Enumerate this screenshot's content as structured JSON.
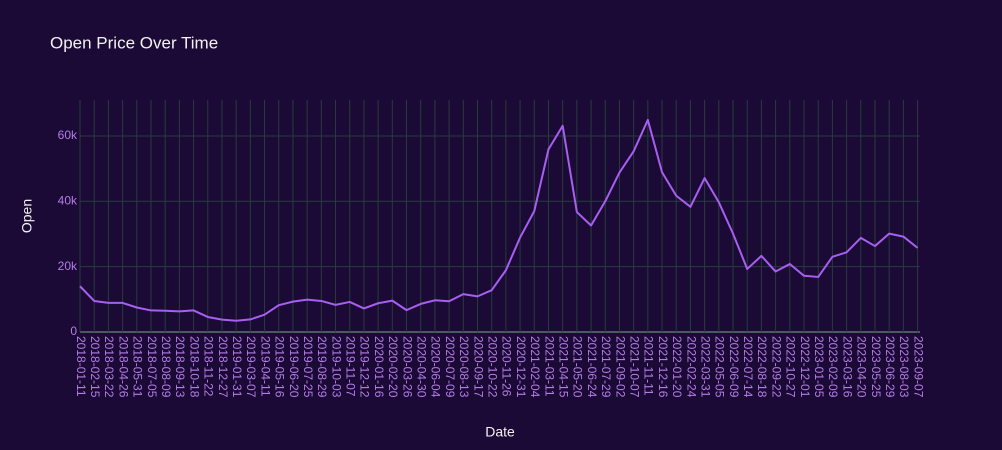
{
  "chart_data": {
    "type": "line",
    "title": "Open Price Over Time",
    "x_label": "Date",
    "y_label": "Open",
    "x": [
      "2018-01-11",
      "2018-02-15",
      "2018-03-22",
      "2018-04-26",
      "2018-05-31",
      "2018-07-05",
      "2018-08-09",
      "2018-09-13",
      "2018-10-18",
      "2018-11-22",
      "2018-12-27",
      "2019-01-31",
      "2019-03-07",
      "2019-04-11",
      "2019-05-16",
      "2019-06-20",
      "2019-07-25",
      "2019-08-29",
      "2019-10-03",
      "2019-11-07",
      "2019-12-12",
      "2020-01-16",
      "2020-02-20",
      "2020-03-26",
      "2020-04-30",
      "2020-06-04",
      "2020-07-09",
      "2020-08-13",
      "2020-09-17",
      "2020-10-22",
      "2020-11-26",
      "2020-12-31",
      "2021-02-04",
      "2021-03-11",
      "2021-04-15",
      "2021-05-20",
      "2021-06-24",
      "2021-07-29",
      "2021-09-02",
      "2021-10-07",
      "2021-11-11",
      "2021-12-16",
      "2022-01-20",
      "2022-02-24",
      "2022-03-31",
      "2022-05-05",
      "2022-06-09",
      "2022-07-14",
      "2022-08-18",
      "2022-09-22",
      "2022-10-27",
      "2022-12-01",
      "2023-01-05",
      "2023-02-09",
      "2023-03-16",
      "2023-04-20",
      "2023-05-25",
      "2023-06-29",
      "2023-08-03",
      "2023-09-07"
    ],
    "series": [
      {
        "name": "Open",
        "color": "#a75ff0",
        "values": [
          14000,
          9500,
          8900,
          8900,
          7500,
          6600,
          6500,
          6300,
          6600,
          4600,
          3800,
          3450,
          3850,
          5300,
          8200,
          9300,
          9900,
          9500,
          8300,
          9200,
          7200,
          8800,
          9600,
          6700,
          8600,
          9700,
          9400,
          11600,
          10900,
          12800,
          18900,
          28900,
          37000,
          55900,
          63100,
          36700,
          32600,
          40000,
          48800,
          55300,
          64900,
          48900,
          41700,
          38300,
          47100,
          39700,
          30100,
          19300,
          23300,
          18500,
          20800,
          17200,
          16850,
          23000,
          24400,
          28800,
          26300,
          30100,
          29200,
          25750
        ]
      }
    ],
    "xlim": [
      "2018-01-11",
      "2023-09-13"
    ],
    "xticks": [
      "2018-01-11",
      "2018-02-15",
      "2018-03-22",
      "2018-04-26",
      "2018-05-31",
      "2018-07-05",
      "2018-08-09",
      "2018-09-13",
      "2018-10-18",
      "2018-11-22",
      "2018-12-27",
      "2019-01-31",
      "2019-03-07",
      "2019-04-11",
      "2019-05-16",
      "2019-06-20",
      "2019-07-25",
      "2019-08-29",
      "2019-10-03",
      "2019-11-07",
      "2019-12-12",
      "2020-01-16",
      "2020-02-20",
      "2020-03-26",
      "2020-04-30",
      "2020-06-04",
      "2020-07-09",
      "2020-08-13",
      "2020-09-17",
      "2020-10-22",
      "2020-11-26",
      "2020-12-31",
      "2021-02-04",
      "2021-03-11",
      "2021-04-15",
      "2021-05-20",
      "2021-06-24",
      "2021-07-29",
      "2021-09-02",
      "2021-10-07",
      "2021-11-11",
      "2021-12-16",
      "2022-01-20",
      "2022-02-24",
      "2022-03-31",
      "2022-05-05",
      "2022-06-09",
      "2022-07-14",
      "2022-08-18",
      "2022-09-22",
      "2022-10-27",
      "2022-12-01",
      "2023-01-05",
      "2023-02-09",
      "2023-03-16",
      "2023-04-20",
      "2023-05-25",
      "2023-06-29",
      "2023-08-03",
      "2023-09-07"
    ],
    "ylim": [
      0,
      71000
    ],
    "yticks": [
      0,
      {
        "value": 20000,
        "label": "20k"
      },
      {
        "value": 40000,
        "label": "40k"
      },
      {
        "value": 60000,
        "label": "60k"
      }
    ],
    "grid": true
  }
}
